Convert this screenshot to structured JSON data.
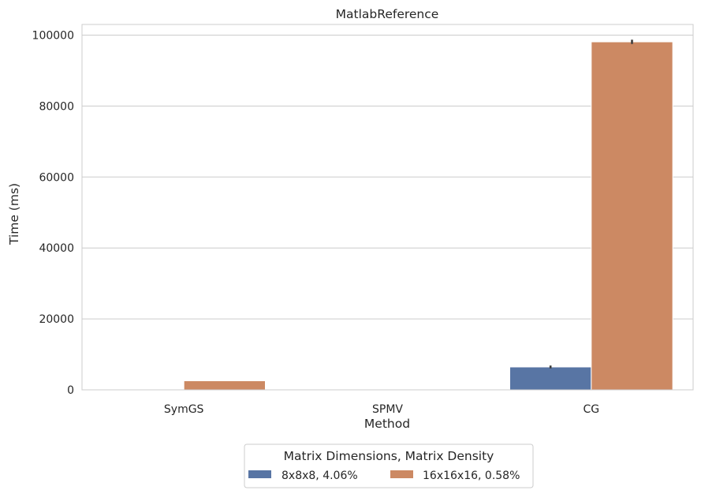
{
  "chart_data": {
    "type": "bar",
    "title": "MatlabReference",
    "xlabel": "Method",
    "ylabel": "Time (ms)",
    "categories": [
      "SymGS",
      "SPMV",
      "CG"
    ],
    "ylim": [
      0,
      103000
    ],
    "yticks": [
      0,
      20000,
      40000,
      60000,
      80000,
      100000
    ],
    "grid": true,
    "legend": {
      "title": "Matrix Dimensions, Matrix Density",
      "placement": "bottom-center"
    },
    "series": [
      {
        "name": "8x8x8, 4.06%",
        "color": "#5875a4",
        "values": [
          60,
          10,
          6450
        ],
        "error_top": [
          null,
          null,
          6850
        ]
      },
      {
        "name": "16x16x16, 0.58%",
        "color": "#cc8963",
        "values": [
          2550,
          50,
          98100
        ],
        "error_top": [
          null,
          null,
          98700
        ]
      }
    ]
  }
}
